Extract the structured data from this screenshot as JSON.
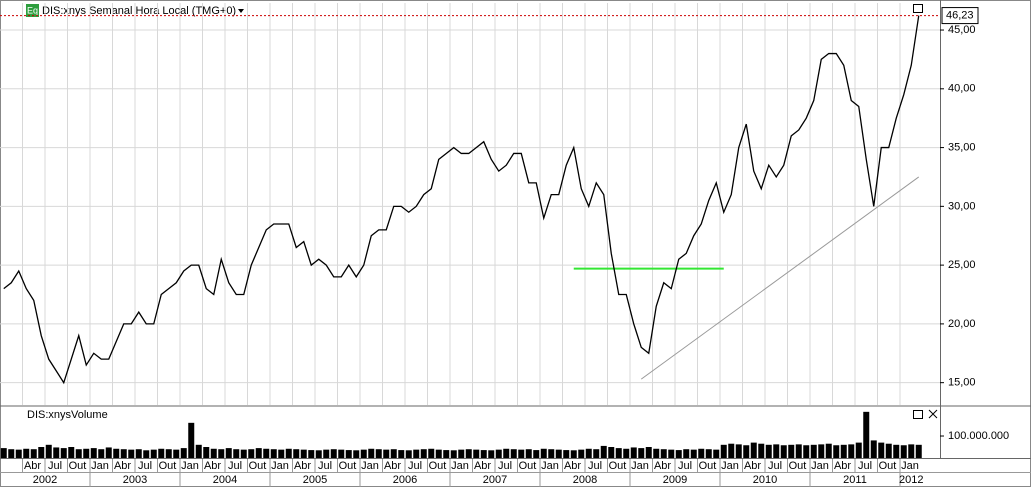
{
  "chart_data": [
    {
      "type": "line",
      "title": "DIS:xnys Semanal Hora Local (TMG+0)",
      "badge": "Eq",
      "color": "#000000",
      "x": [
        "2002-01",
        "2002-02",
        "2002-03",
        "2002-04",
        "2002-05",
        "2002-06",
        "2002-07",
        "2002-08",
        "2002-09",
        "2002-10",
        "2002-11",
        "2002-12",
        "2003-01",
        "2003-02",
        "2003-03",
        "2003-04",
        "2003-05",
        "2003-06",
        "2003-07",
        "2003-08",
        "2003-09",
        "2003-10",
        "2003-11",
        "2003-12",
        "2004-01",
        "2004-02",
        "2004-03",
        "2004-04",
        "2004-05",
        "2004-06",
        "2004-07",
        "2004-08",
        "2004-09",
        "2004-10",
        "2004-11",
        "2004-12",
        "2005-01",
        "2005-02",
        "2005-03",
        "2005-04",
        "2005-05",
        "2005-06",
        "2005-07",
        "2005-08",
        "2005-09",
        "2005-10",
        "2005-11",
        "2005-12",
        "2006-01",
        "2006-02",
        "2006-03",
        "2006-04",
        "2006-05",
        "2006-06",
        "2006-07",
        "2006-08",
        "2006-09",
        "2006-10",
        "2006-11",
        "2006-12",
        "2007-01",
        "2007-02",
        "2007-03",
        "2007-04",
        "2007-05",
        "2007-06",
        "2007-07",
        "2007-08",
        "2007-09",
        "2007-10",
        "2007-11",
        "2007-12",
        "2008-01",
        "2008-02",
        "2008-03",
        "2008-04",
        "2008-05",
        "2008-06",
        "2008-07",
        "2008-08",
        "2008-09",
        "2008-10",
        "2008-11",
        "2008-12",
        "2009-01",
        "2009-02",
        "2009-03",
        "2009-04",
        "2009-05",
        "2009-06",
        "2009-07",
        "2009-08",
        "2009-09",
        "2009-10",
        "2009-11",
        "2009-12",
        "2010-01",
        "2010-02",
        "2010-03",
        "2010-04",
        "2010-05",
        "2010-06",
        "2010-07",
        "2010-08",
        "2010-09",
        "2010-10",
        "2010-11",
        "2010-12",
        "2011-01",
        "2011-02",
        "2011-03",
        "2011-04",
        "2011-05",
        "2011-06",
        "2011-07",
        "2011-08",
        "2011-09",
        "2011-10",
        "2011-11",
        "2011-12",
        "2012-01",
        "2012-02",
        "2012-03"
      ],
      "values": [
        23,
        23.5,
        24.5,
        23,
        22,
        19,
        17,
        16,
        15,
        17,
        19,
        16.5,
        17.5,
        17,
        17,
        18.5,
        20,
        20,
        21,
        20,
        20,
        22.5,
        23,
        23.5,
        24.5,
        25,
        25,
        23,
        22.5,
        25.5,
        23.5,
        22.5,
        22.5,
        25,
        26.5,
        28,
        28.5,
        28.5,
        28.5,
        26.5,
        27,
        25,
        25.5,
        25,
        24,
        24,
        25,
        24,
        25,
        27.5,
        28,
        28,
        30,
        30,
        29.5,
        30,
        31,
        31.5,
        34,
        34.5,
        35,
        34.5,
        34.5,
        35,
        35.5,
        34,
        33,
        33.5,
        34.5,
        34.5,
        32,
        32,
        29,
        31,
        31,
        33.5,
        35,
        31.5,
        30,
        32,
        31,
        26,
        22.5,
        22.5,
        20,
        18,
        17.5,
        21.5,
        23.5,
        23,
        25.5,
        26,
        27.5,
        28.5,
        30.5,
        32,
        29.5,
        31,
        35,
        37,
        33,
        31.5,
        33.5,
        32.5,
        33.5,
        36,
        36.5,
        37.5,
        39,
        42.5,
        43,
        43,
        42,
        39,
        38.5,
        34,
        30,
        35,
        35,
        37.5,
        39.5,
        42,
        46.23
      ],
      "last_value_label": "46,23",
      "last_line_color": "#cc0000",
      "ylim": [
        13.1,
        47.3
      ],
      "yticks": [
        {
          "value": 15,
          "label": "15,00"
        },
        {
          "value": 20,
          "label": "20,00"
        },
        {
          "value": 25,
          "label": "25,00"
        },
        {
          "value": 30,
          "label": "30,00"
        },
        {
          "value": 35,
          "label": "35,00"
        },
        {
          "value": 40,
          "label": "40,00"
        },
        {
          "value": 45,
          "label": "45,00"
        }
      ],
      "xticks": [
        {
          "value": "2002-04",
          "label": "Abr"
        },
        {
          "value": "2002-07",
          "label": "Jul"
        },
        {
          "value": "2002-10",
          "label": "Out"
        },
        {
          "value": "2003-01",
          "label": "Jan"
        },
        {
          "value": "2003-04",
          "label": "Abr"
        },
        {
          "value": "2003-07",
          "label": "Jul"
        },
        {
          "value": "2003-10",
          "label": "Out"
        },
        {
          "value": "2004-01",
          "label": "Jan"
        },
        {
          "value": "2004-04",
          "label": "Abr"
        },
        {
          "value": "2004-07",
          "label": "Jul"
        },
        {
          "value": "2004-10",
          "label": "Out"
        },
        {
          "value": "2005-01",
          "label": "Jan"
        },
        {
          "value": "2005-04",
          "label": "Abr"
        },
        {
          "value": "2005-07",
          "label": "Jul"
        },
        {
          "value": "2005-10",
          "label": "Out"
        },
        {
          "value": "2006-01",
          "label": "Jan"
        },
        {
          "value": "2006-04",
          "label": "Abr"
        },
        {
          "value": "2006-07",
          "label": "Jul"
        },
        {
          "value": "2006-10",
          "label": "Out"
        },
        {
          "value": "2007-01",
          "label": "Jan"
        },
        {
          "value": "2007-04",
          "label": "Abr"
        },
        {
          "value": "2007-07",
          "label": "Jul"
        },
        {
          "value": "2007-10",
          "label": "Out"
        },
        {
          "value": "2008-01",
          "label": "Jan"
        },
        {
          "value": "2008-04",
          "label": "Abr"
        },
        {
          "value": "2008-07",
          "label": "Jul"
        },
        {
          "value": "2008-10",
          "label": "Out"
        },
        {
          "value": "2009-01",
          "label": "Jan"
        },
        {
          "value": "2009-04",
          "label": "Abr"
        },
        {
          "value": "2009-07",
          "label": "Jul"
        },
        {
          "value": "2009-10",
          "label": "Out"
        },
        {
          "value": "2010-01",
          "label": "Jan"
        },
        {
          "value": "2010-04",
          "label": "Abr"
        },
        {
          "value": "2010-07",
          "label": "Jul"
        },
        {
          "value": "2010-10",
          "label": "Out"
        },
        {
          "value": "2011-01",
          "label": "Jan"
        },
        {
          "value": "2011-04",
          "label": "Abr"
        },
        {
          "value": "2011-07",
          "label": "Jul"
        },
        {
          "value": "2011-10",
          "label": "Out"
        },
        {
          "value": "2012-01",
          "label": "Jan"
        }
      ],
      "years": [
        "2002",
        "2003",
        "2004",
        "2005",
        "2006",
        "2007",
        "2008",
        "2009",
        "2010",
        "2011",
        "2012"
      ],
      "grid": true,
      "hline": {
        "y": 24.7,
        "from": "2008-05",
        "to": "2010-01",
        "color": "#33e633"
      },
      "trendline": {
        "from": "2009-02",
        "y1": 15.3,
        "to": "2012-03",
        "y2": 32.5,
        "color": "#999999"
      }
    },
    {
      "type": "bar",
      "title": "DIS:xnysVolume",
      "color": "#000000",
      "values": [
        45000000.0,
        40000000.0,
        38000000.0,
        42000000.0,
        40000000.0,
        50000000.0,
        60000000.0,
        48000000.0,
        45000000.0,
        50000000.0,
        40000000.0,
        42000000.0,
        45000000.0,
        40000000.0,
        48000000.0,
        42000000.0,
        40000000.0,
        38000000.0,
        40000000.0,
        35000000.0,
        38000000.0,
        42000000.0,
        40000000.0,
        38000000.0,
        45000000.0,
        160000000.0,
        60000000.0,
        50000000.0,
        42000000.0,
        40000000.0,
        45000000.0,
        40000000.0,
        38000000.0,
        40000000.0,
        45000000.0,
        42000000.0,
        40000000.0,
        38000000.0,
        42000000.0,
        40000000.0,
        38000000.0,
        36000000.0,
        35000000.0,
        38000000.0,
        40000000.0,
        38000000.0,
        36000000.0,
        35000000.0,
        38000000.0,
        42000000.0,
        40000000.0,
        38000000.0,
        40000000.0,
        36000000.0,
        35000000.0,
        38000000.0,
        40000000.0,
        42000000.0,
        38000000.0,
        36000000.0,
        35000000.0,
        38000000.0,
        40000000.0,
        38000000.0,
        36000000.0,
        35000000.0,
        38000000.0,
        42000000.0,
        40000000.0,
        38000000.0,
        40000000.0,
        36000000.0,
        42000000.0,
        40000000.0,
        38000000.0,
        36000000.0,
        35000000.0,
        38000000.0,
        42000000.0,
        40000000.0,
        55000000.0,
        50000000.0,
        45000000.0,
        42000000.0,
        48000000.0,
        45000000.0,
        50000000.0,
        42000000.0,
        40000000.0,
        38000000.0,
        36000000.0,
        40000000.0,
        38000000.0,
        42000000.0,
        40000000.0,
        38000000.0,
        60000000.0,
        65000000.0,
        62000000.0,
        58000000.0,
        70000000.0,
        65000000.0,
        60000000.0,
        62000000.0,
        58000000.0,
        60000000.0,
        62000000.0,
        58000000.0,
        60000000.0,
        62000000.0,
        65000000.0,
        58000000.0,
        60000000.0,
        62000000.0,
        70000000.0,
        210000000.0,
        80000000.0,
        70000000.0,
        65000000.0,
        60000000.0,
        58000000.0,
        62000000.0,
        60000000.0
      ],
      "ylim": [
        0,
        232000000
      ],
      "yticks": [
        {
          "value": 100000000,
          "label": "100.000.000"
        }
      ]
    }
  ]
}
